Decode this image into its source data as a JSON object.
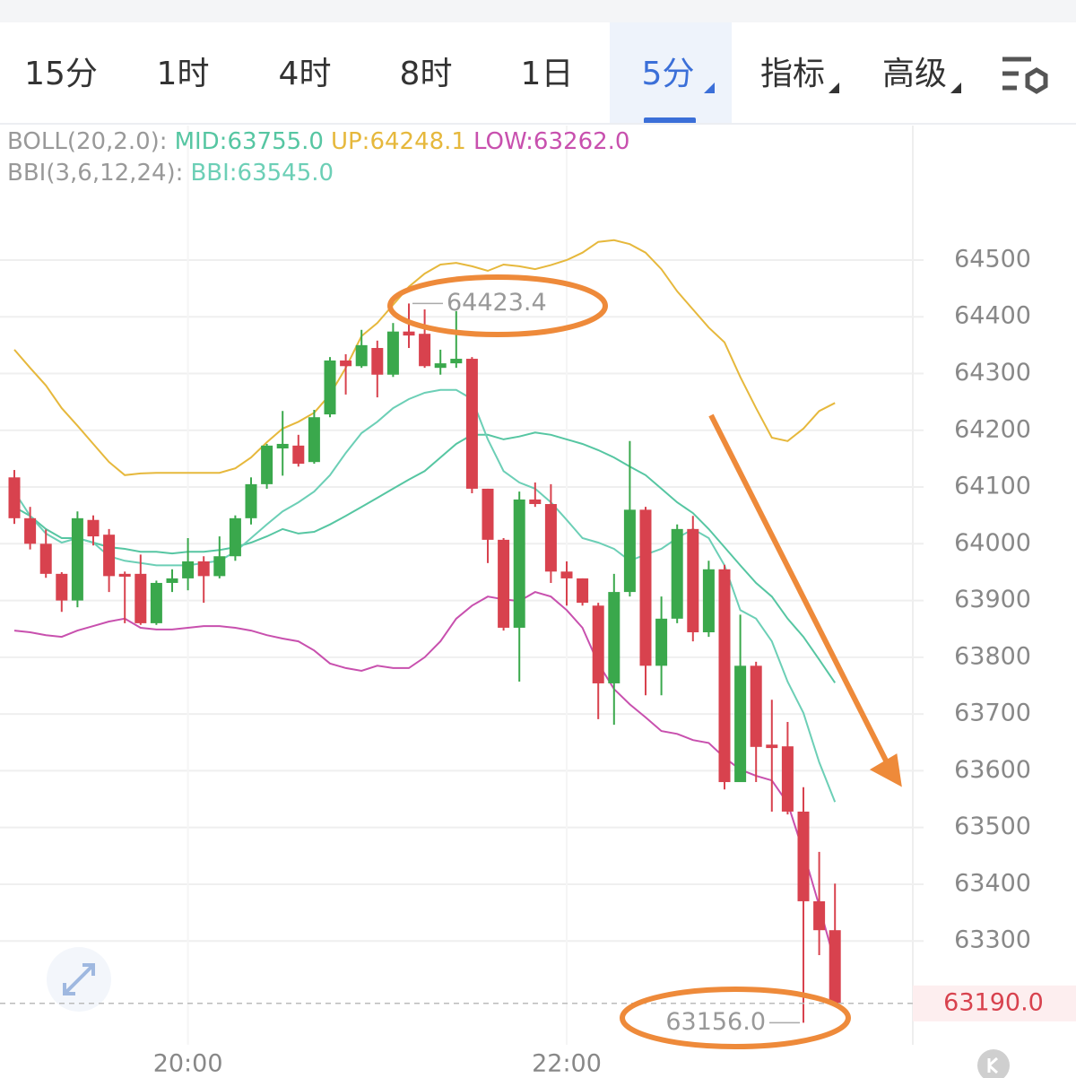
{
  "tabs": [
    {
      "label": "15分"
    },
    {
      "label": "1时"
    },
    {
      "label": "4时"
    },
    {
      "label": "8时"
    },
    {
      "label": "1日"
    },
    {
      "label": "5分",
      "active": true,
      "dropdown": true
    },
    {
      "label": "指标",
      "dropdown": true
    },
    {
      "label": "高级",
      "dropdown": true
    }
  ],
  "chart_data": {
    "type": "candlestick",
    "categories": [
      null,
      null,
      null,
      null,
      null,
      null,
      null,
      null,
      null,
      null,
      null,
      "20:00",
      null,
      null,
      null,
      null,
      null,
      null,
      null,
      null,
      null,
      null,
      null,
      null,
      null,
      null,
      null,
      null,
      null,
      null,
      null,
      null,
      null,
      null,
      null,
      "22:00",
      null,
      null,
      null,
      null,
      null,
      null,
      null,
      null,
      null,
      null,
      null,
      null,
      null,
      null,
      null,
      null,
      null
    ],
    "open": [
      64117,
      64045,
      64000,
      63947,
      63900,
      64042,
      64016,
      63947,
      63947,
      63860,
      63931,
      63939,
      63969,
      63943,
      63978,
      64045,
      64105,
      64168,
      64173,
      64144,
      64228,
      64323,
      64313,
      64345,
      64298,
      64374,
      64370,
      64310,
      64318,
      64326,
      64097,
      64007,
      63852,
      64078,
      64070,
      63951,
      63939,
      63891,
      63754,
      63915,
      64060,
      63785,
      63868,
      64026,
      63844,
      63955,
      63580,
      63785,
      63646,
      63643,
      63528,
      63370,
      63319
    ],
    "high": [
      64130,
      64065,
      64025,
      63950,
      64057,
      64050,
      64026,
      63951,
      63981,
      63935,
      63955,
      64010,
      63978,
      64013,
      64050,
      64117,
      64176,
      64234,
      64192,
      64236,
      64329,
      64334,
      64377,
      64358,
      64389,
      64423.4,
      64413,
      64342,
      64410,
      64329,
      64097,
      64010,
      64092,
      64108,
      64105,
      63969,
      63939,
      63896,
      63947,
      64181,
      64065,
      63907,
      64034,
      64049,
      63970,
      63963,
      63875,
      63792,
      63725,
      63686,
      63571,
      63457,
      63401
    ],
    "low": [
      64035,
      63990,
      63940,
      63880,
      63888,
      63997,
      63915,
      63860,
      63857,
      63857,
      63915,
      63918,
      63896,
      63939,
      63970,
      64034,
      64097,
      64120,
      64136,
      64141,
      64223,
      64263,
      64310,
      64258,
      64294,
      64345,
      64310,
      64298,
      64310,
      64089,
      63966,
      63847,
      63757,
      64065,
      63931,
      63891,
      63891,
      63691,
      63681,
      63907,
      63733,
      63733,
      63860,
      63828,
      63836,
      63567,
      63580,
      63580,
      63528,
      63523,
      63156,
      63275,
      63188
    ],
    "close": [
      64045,
      64000,
      63947,
      63900,
      64045,
      64013,
      63943,
      63942,
      63860,
      63931,
      63939,
      63969,
      63943,
      63978,
      64045,
      64105,
      64173,
      64176,
      64141,
      64223,
      64323,
      64313,
      64350,
      64298,
      64374,
      64367,
      64313,
      64318,
      64326,
      64097,
      64007,
      63852,
      64078,
      64070,
      63951,
      63939,
      63896,
      63754,
      63915,
      64060,
      63785,
      63868,
      64026,
      63844,
      63955,
      63580,
      63785,
      63642,
      63640,
      63528,
      63370,
      63319,
      63190
    ],
    "up_color": "#3aa84c",
    "down_color": "#d8424e",
    "indicators": [
      {
        "title": "BOLL(20,2.0):",
        "lines": [
          {
            "label": "MID:63755.0",
            "color": "#56c6a2",
            "values": [
              64065,
              64049,
              64026,
              64010,
              64010,
              64002,
              63994,
              63991,
              63986,
              63986,
              63983,
              63986,
              63986,
              63989,
              63994,
              64002,
              64013,
              64026,
              64018,
              64021,
              64034,
              64049,
              64065,
              64081,
              64097,
              64113,
              64128,
              64152,
              64176,
              64192,
              64192,
              64184,
              64189,
              64196,
              64192,
              64184,
              64176,
              64165,
              64152,
              64136,
              64121,
              64097,
              64073,
              64054,
              64026,
              63994,
              63962,
              63931,
              63907,
              63868,
              63836,
              63796,
              63755
            ]
          },
          {
            "label": "UP:64248.1",
            "color": "#e6b83c",
            "values": [
              64342,
              64310,
              64279,
              64239,
              64208,
              64176,
              64144,
              64121,
              64124,
              64125,
              64125,
              64125,
              64125,
              64125,
              64133,
              64152,
              64179,
              64203,
              64215,
              64231,
              64263,
              64310,
              64366,
              64389,
              64421,
              64453,
              64476,
              64492,
              64495,
              64489,
              64481,
              64492,
              64489,
              64484,
              64491,
              64500,
              64513,
              64532,
              64535,
              64528,
              64513,
              64484,
              64445,
              64413,
              64381,
              64355,
              64294,
              64239,
              64187,
              64181,
              64203,
              64234,
              64248.1
            ]
          },
          {
            "label": "LOW:63262.0",
            "color": "#c850ae",
            "values": [
              63847,
              63844,
              63839,
              63836,
              63847,
              63855,
              63863,
              63868,
              63852,
              63849,
              63849,
              63852,
              63855,
              63855,
              63852,
              63847,
              63839,
              63833,
              63828,
              63812,
              63789,
              63781,
              63776,
              63785,
              63781,
              63781,
              63800,
              63828,
              63868,
              63891,
              63907,
              63902,
              63899,
              63915,
              63907,
              63883,
              63852,
              63789,
              63744,
              63717,
              63694,
              63670,
              63665,
              63654,
              63649,
              63623,
              63602,
              63591,
              63583,
              63543,
              63457,
              63362,
              63262
            ]
          }
        ]
      },
      {
        "title": "BBI(3,6,12,24):",
        "lines": [
          {
            "label": "BBI:63545.0",
            "color": "#6ccfb6",
            "values": [
              64092,
              64049,
              64018,
              64002,
              64010,
              64002,
              63978,
              63970,
              63966,
              63962,
              63962,
              63962,
              63966,
              63970,
              63986,
              64010,
              64034,
              64057,
              64073,
              64092,
              64121,
              64160,
              64195,
              64215,
              64239,
              64255,
              64266,
              64271,
              64271,
              64255,
              64184,
              64128,
              64108,
              64097,
              64073,
              64042,
              64010,
              64002,
              63991,
              63970,
              63981,
              63991,
              64010,
              64026,
              64010,
              63962,
              63883,
              63868,
              63828,
              63757,
              63702,
              63615,
              63545
            ]
          }
        ]
      }
    ],
    "ylim": [
      63117,
      64737
    ],
    "yticks": [
      63300,
      63400,
      63500,
      63600,
      63700,
      63800,
      63900,
      64000,
      64100,
      64200,
      64300,
      64400,
      64500
    ],
    "grid": true,
    "max_label": {
      "value": 64423.4,
      "label": "64423.4"
    },
    "min_label": {
      "value": 63156,
      "label": "63156.0"
    },
    "last_price": {
      "value": 63190,
      "label": "63190.0"
    }
  }
}
